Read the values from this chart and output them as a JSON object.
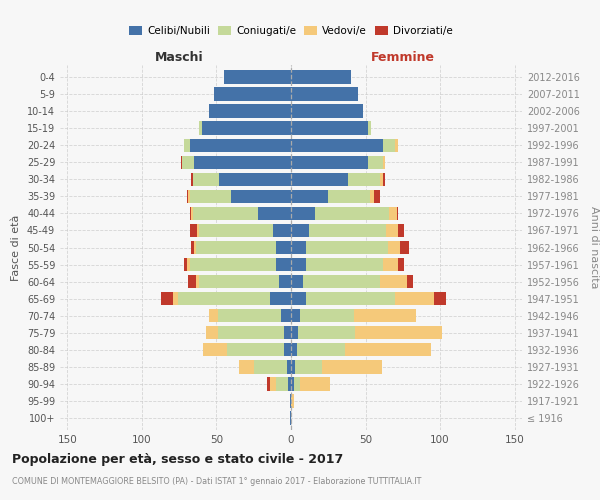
{
  "age_groups": [
    "100+",
    "95-99",
    "90-94",
    "85-89",
    "80-84",
    "75-79",
    "70-74",
    "65-69",
    "60-64",
    "55-59",
    "50-54",
    "45-49",
    "40-44",
    "35-39",
    "30-34",
    "25-29",
    "20-24",
    "15-19",
    "10-14",
    "5-9",
    "0-4"
  ],
  "birth_years": [
    "≤ 1916",
    "1917-1921",
    "1922-1926",
    "1927-1931",
    "1932-1936",
    "1937-1941",
    "1942-1946",
    "1947-1951",
    "1952-1956",
    "1957-1961",
    "1962-1966",
    "1967-1971",
    "1972-1976",
    "1977-1981",
    "1982-1986",
    "1987-1991",
    "1992-1996",
    "1997-2001",
    "2002-2006",
    "2007-2011",
    "2012-2016"
  ],
  "male": {
    "celibi": [
      1,
      1,
      2,
      3,
      5,
      5,
      7,
      14,
      8,
      10,
      10,
      12,
      22,
      40,
      48,
      65,
      68,
      60,
      55,
      52,
      45
    ],
    "coniugati": [
      0,
      0,
      8,
      22,
      38,
      44,
      42,
      62,
      54,
      58,
      54,
      50,
      44,
      28,
      18,
      8,
      4,
      2,
      0,
      0,
      0
    ],
    "vedovi": [
      0,
      0,
      4,
      10,
      16,
      8,
      6,
      3,
      2,
      2,
      1,
      1,
      1,
      1,
      0,
      0,
      0,
      0,
      0,
      0,
      0
    ],
    "divorziati": [
      0,
      0,
      2,
      0,
      0,
      0,
      0,
      8,
      5,
      2,
      2,
      5,
      1,
      1,
      1,
      1,
      0,
      0,
      0,
      0,
      0
    ]
  },
  "female": {
    "nubili": [
      0,
      0,
      2,
      3,
      4,
      5,
      6,
      10,
      8,
      10,
      10,
      12,
      16,
      25,
      38,
      52,
      62,
      52,
      48,
      45,
      40
    ],
    "coniugate": [
      0,
      0,
      4,
      18,
      32,
      38,
      36,
      60,
      52,
      52,
      55,
      52,
      50,
      28,
      22,
      10,
      8,
      2,
      0,
      0,
      0
    ],
    "vedove": [
      0,
      2,
      20,
      40,
      58,
      58,
      42,
      26,
      18,
      10,
      8,
      8,
      5,
      3,
      2,
      1,
      2,
      0,
      0,
      0,
      0
    ],
    "divorziate": [
      0,
      0,
      0,
      0,
      0,
      0,
      0,
      8,
      4,
      4,
      6,
      4,
      1,
      4,
      1,
      0,
      0,
      0,
      0,
      0,
      0
    ]
  },
  "colors": {
    "celibi": "#4472a8",
    "coniugati": "#c5d99a",
    "vedovi": "#f5c97a",
    "divorziati": "#c0392b"
  },
  "xlim": 155,
  "title": "Popolazione per età, sesso e stato civile - 2017",
  "subtitle": "COMUNE DI MONTEMAGGIORE BELSITO (PA) - Dati ISTAT 1° gennaio 2017 - Elaborazione TUTTITALIA.IT",
  "ylabel_left": "Fasce di età",
  "ylabel_right": "Anni di nascita",
  "xlabel_maschi": "Maschi",
  "xlabel_femmine": "Femmine",
  "bg_color": "#f7f7f7",
  "grid_color": "#cccccc"
}
